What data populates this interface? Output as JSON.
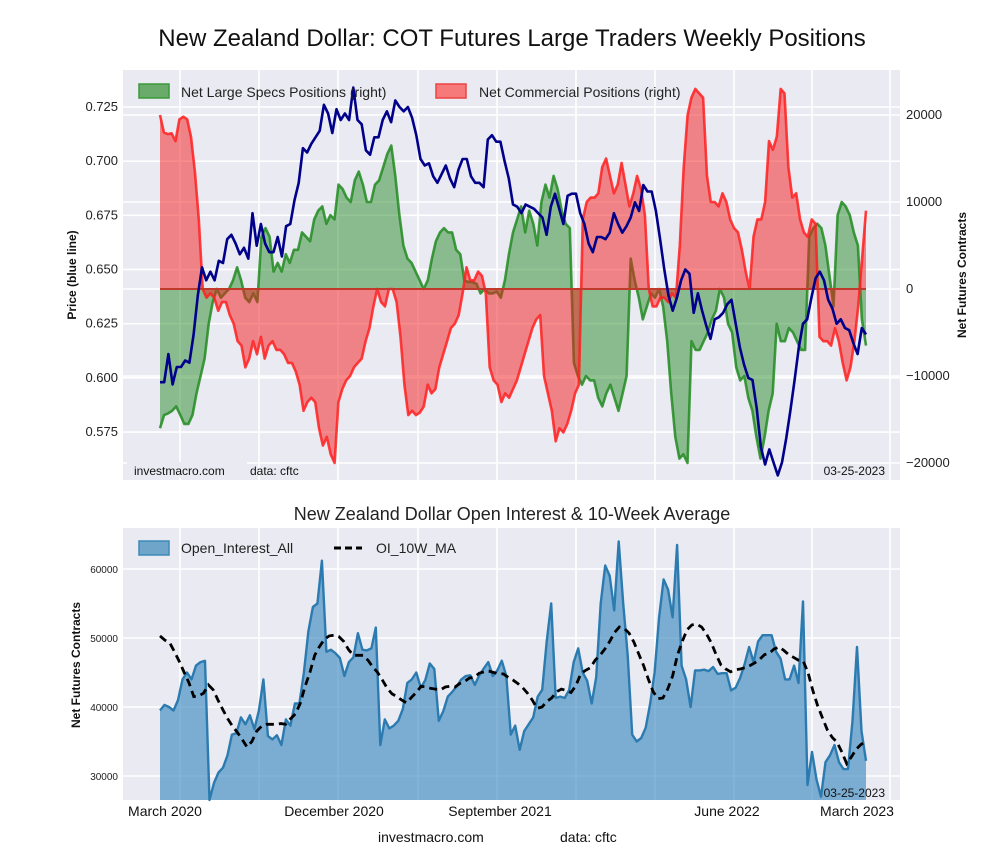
{
  "title": "New Zealand Dollar: COT Futures Large Traders Weekly Positions",
  "chart_data": [
    {
      "type": "line",
      "title": "New Zealand Dollar: COT Futures Large Traders Weekly Positions",
      "ylabel": "Price (blue line)",
      "y2label": "Net Futures Contracts",
      "ylim": [
        0.557,
        0.743
      ],
      "y2lim": [
        -21500,
        25500
      ],
      "yticks": [
        "0.575",
        "0.600",
        "0.625",
        "0.650",
        "0.675",
        "0.700",
        "0.725"
      ],
      "y2ticks": [
        "−20000",
        "−10000",
        "0",
        "10000",
        "20000"
      ],
      "grid": true,
      "legend_position": "top-left",
      "legend": [
        "Net Large Specs Positions (right)",
        "Net Commercial Positions (right)"
      ],
      "footer_left": "investmacro.com    data: cftc",
      "footer_right": "03-25-2023",
      "x_range_weeks": [
        0,
        157
      ],
      "series": [
        {
          "name": "Price",
          "color": "#00008b",
          "values": [
            0.598,
            0.598,
            0.611,
            0.597,
            0.605,
            0.605,
            0.608,
            0.607,
            0.62,
            0.638,
            0.651,
            0.645,
            0.649,
            0.645,
            0.654,
            0.653,
            0.664,
            0.666,
            0.662,
            0.657,
            0.66,
            0.655,
            0.676,
            0.661,
            0.671,
            0.662,
            0.658,
            0.658,
            0.665,
            0.656,
            0.67,
            0.671,
            0.682,
            0.69,
            0.706,
            0.704,
            0.708,
            0.711,
            0.714,
            0.726,
            0.722,
            0.713,
            0.724,
            0.719,
            0.722,
            0.719,
            0.734,
            0.719,
            0.717,
            0.705,
            0.703,
            0.711,
            0.711,
            0.719,
            0.723,
            0.718,
            0.728,
            0.725,
            0.723,
            0.725,
            0.72,
            0.712,
            0.701,
            0.698,
            0.699,
            0.693,
            0.69,
            0.694,
            0.698,
            0.692,
            0.688,
            0.696,
            0.701,
            0.701,
            0.693,
            0.69,
            0.69,
            0.688,
            0.71,
            0.712,
            0.709,
            0.709,
            0.7,
            0.692,
            0.68,
            0.679,
            0.676,
            0.68,
            0.679,
            0.678,
            0.676,
            0.674,
            0.666,
            0.679,
            0.685,
            0.678,
            0.671,
            0.684,
            0.685,
            0.685,
            0.676,
            0.671,
            0.662,
            0.658,
            0.665,
            0.665,
            0.664,
            0.667,
            0.676,
            0.671,
            0.667,
            0.67,
            0.674,
            0.681,
            0.677,
            0.689,
            0.686,
            0.686,
            0.677,
            0.664,
            0.65,
            0.638,
            0.631,
            0.637,
            0.645,
            0.65,
            0.648,
            0.63,
            0.639,
            0.631,
            0.624,
            0.618,
            0.627,
            0.628,
            0.63,
            0.634,
            0.636,
            0.625,
            0.614,
            0.606,
            0.6,
            0.599,
            0.586,
            0.568,
            0.56,
            0.567,
            0.561,
            0.555,
            0.561,
            0.572,
            0.585,
            0.599,
            0.614,
            0.625,
            0.627,
            0.637,
            0.646,
            0.649,
            0.645,
            0.636,
            0.632,
            0.625,
            0.627,
            0.623,
            0.622,
            0.616,
            0.611,
            0.623,
            0.62
          ]
        },
        {
          "name": "Net Large Specs Positions (right)",
          "color": "#228b22",
          "values": [
            -16000,
            -14500,
            -14300,
            -14000,
            -13500,
            -14500,
            -15500,
            -15500,
            -14500,
            -12000,
            -10000,
            -8000,
            -4000,
            -1500,
            0,
            -1000,
            -500,
            0,
            1000,
            2500,
            1000,
            -1000,
            -1500,
            -500,
            -1500,
            6000,
            7000,
            6000,
            2000,
            3000,
            2000,
            4000,
            3000,
            4500,
            4500,
            6500,
            6000,
            5500,
            8000,
            9000,
            9500,
            7500,
            8500,
            8000,
            12000,
            11500,
            10500,
            10000,
            12500,
            13500,
            12000,
            10000,
            10000,
            12000,
            12500,
            14000,
            15500,
            16500,
            13000,
            8500,
            5000,
            3500,
            3000,
            2000,
            1000,
            0,
            1000,
            3500,
            5500,
            6500,
            7000,
            6500,
            6500,
            4500,
            4000,
            1000,
            800,
            800,
            600,
            -500,
            0,
            -500,
            -500,
            -300,
            -1000,
            1000,
            4000,
            6500,
            8000,
            9500,
            6500,
            9000,
            7500,
            5000,
            10000,
            12000,
            10500,
            13000,
            11500,
            9000,
            7500,
            7000,
            -8500,
            -10000,
            -11000,
            -10000,
            -10500,
            -10500,
            -12500,
            -13500,
            -12000,
            -11000,
            -12500,
            -14000,
            -12000,
            -10000,
            3500,
            1000,
            -1000,
            -3500,
            -2000,
            -500,
            -1000,
            0,
            -2000,
            -6000,
            -12000,
            -17000,
            -19500,
            -19000,
            -20000,
            -6000,
            -7000,
            -7000,
            -6000,
            -5000,
            -3500,
            -2500,
            0,
            -1000,
            -4000,
            -5000,
            -9000,
            -10500,
            -10000,
            -12500,
            -14000,
            -17000,
            -19500,
            -17000,
            -14000,
            -12000,
            -4000,
            -6000,
            -6000,
            -4500,
            -5000,
            -6000,
            -7000,
            -7000,
            6000,
            7000,
            7500,
            7000,
            5000,
            1500,
            -2000,
            8500,
            10000,
            9500,
            8500,
            6500,
            5000,
            -3500,
            -6500
          ]
        },
        {
          "name": "Net Commercial Positions (right)",
          "color": "#ff2020",
          "values": [
            20000,
            18000,
            17800,
            17900,
            17000,
            19500,
            19800,
            19500,
            17500,
            13500,
            8000,
            0,
            -1000,
            -500,
            -1000,
            -2500,
            -1500,
            -1500,
            -3000,
            -4000,
            -6000,
            -6500,
            -9000,
            -8000,
            -6000,
            -7500,
            -5500,
            -8000,
            -6500,
            -6000,
            -7000,
            -7000,
            -7500,
            -8500,
            -8500,
            -9500,
            -11000,
            -14000,
            -13000,
            -12500,
            -13000,
            -16000,
            -18000,
            -17000,
            -19000,
            -20000,
            -13000,
            -11500,
            -10500,
            -10000,
            -9000,
            -8500,
            -8000,
            -6000,
            -4500,
            -2000,
            0,
            -1500,
            -2000,
            0,
            0,
            -1500,
            -5500,
            -11000,
            -14500,
            -14000,
            -14500,
            -14200,
            -13500,
            -11000,
            -12000,
            -11500,
            -9000,
            -7500,
            -6000,
            -4500,
            -4000,
            -3000,
            -500,
            2500,
            1000,
            1000,
            2000,
            1500,
            -500,
            -9000,
            -10500,
            -11000,
            -13000,
            -12000,
            -12500,
            -11500,
            -10500,
            -9000,
            -7500,
            -6000,
            -4500,
            -3500,
            -3000,
            -10000,
            -12000,
            -14000,
            -17500,
            -16000,
            -16500,
            -15500,
            -14000,
            -12000,
            -11000,
            8000,
            10000,
            10500,
            10500,
            11000,
            14000,
            15000,
            13000,
            11000,
            12000,
            14500,
            12000,
            9500,
            11000,
            13000,
            11500,
            8500,
            0,
            -2000,
            -2000,
            -1000,
            -1000,
            -1500,
            -500,
            -1000,
            5000,
            14000,
            20000,
            22000,
            23000,
            22500,
            22000,
            13000,
            10000,
            10000,
            9500,
            11000,
            10000,
            8000,
            7000,
            6500,
            4500,
            2000,
            0,
            6000,
            8000,
            8000,
            10000,
            17000,
            16000,
            17500,
            23000,
            22500,
            14000,
            10500,
            11000,
            8000,
            6500,
            6000,
            8000,
            7500,
            -5500,
            -6000,
            -6000,
            -6500,
            -4500,
            -6000,
            -8500,
            -10500,
            -9000,
            -6000,
            -2000,
            3500,
            9000
          ]
        }
      ]
    },
    {
      "type": "area",
      "title": "New Zealand Dollar Open Interest & 10-Week Average",
      "ylabel": "Net Futures Contracts",
      "ylim": [
        26500,
        66000
      ],
      "yticks": [
        "30000",
        "40000",
        "50000",
        "60000"
      ],
      "grid": true,
      "legend_position": "top-left",
      "legend": [
        "Open_Interest_All",
        "OI_10W_MA"
      ],
      "xtick_labels": [
        "March 2020",
        "December 2020",
        "September 2021",
        "June 2022",
        "March 2023"
      ],
      "date_stamp": "03-25-2023",
      "series": [
        {
          "name": "Open_Interest_All",
          "color": "#3182bd",
          "values": [
            39500,
            40300,
            40000,
            39500,
            41000,
            44000,
            45000,
            44000,
            46000,
            46500,
            46700,
            26500,
            29000,
            30500,
            31200,
            33000,
            36000,
            36200,
            38500,
            37500,
            38800,
            36800,
            39500,
            44000,
            35800,
            35300,
            35900,
            34500,
            38200,
            37300,
            40500,
            40500,
            45000,
            51000,
            54500,
            55000,
            61200,
            48000,
            48300,
            47800,
            47100,
            44500,
            46500,
            47200,
            50700,
            48300,
            48200,
            48500,
            51500,
            34500,
            38200,
            36900,
            37300,
            38000,
            39700,
            43500,
            44000,
            45000,
            42800,
            43900,
            46300,
            45500,
            38000,
            39400,
            41500,
            42200,
            43000,
            44000,
            44500,
            44600,
            43200,
            44600,
            45600,
            46500,
            44500,
            45300,
            46700,
            44500,
            36000,
            37300,
            33800,
            36500,
            37500,
            38500,
            41500,
            42500,
            49500,
            55000,
            41300,
            41500,
            41300,
            42500,
            46500,
            48500,
            45000,
            43800,
            40500,
            44300,
            55000,
            60500,
            59000,
            54000,
            64000,
            55000,
            47500,
            36000,
            35000,
            35500,
            37000,
            40500,
            45000,
            53000,
            58500,
            57000,
            53000,
            63500,
            46000,
            44000,
            40000,
            45300,
            45300,
            45400,
            45200,
            45800,
            44800,
            44900,
            44900,
            42400,
            42800,
            44200,
            46200,
            48700,
            46500,
            49500,
            50400,
            50400,
            50400,
            48000,
            47000,
            44000,
            44000,
            46000,
            43500,
            55300,
            28700,
            33500,
            29500,
            27000,
            32000,
            33000,
            34500,
            32000,
            31000,
            31000,
            38000,
            48700,
            36500,
            32200
          ]
        },
        {
          "name": "OI_10W_MA",
          "color": "#000000",
          "values": [
            50300,
            49700,
            49300,
            48000,
            46600,
            45000,
            43500,
            41500,
            41600,
            42000,
            43200,
            42500,
            41000,
            39600,
            38300,
            37200,
            36300,
            35300,
            34200,
            35000,
            36500,
            37200,
            37500,
            37500,
            37500,
            37600,
            37500,
            38300,
            39000,
            40500,
            43000,
            45000,
            47500,
            48800,
            49800,
            50300,
            50400,
            50200,
            49500,
            48300,
            47500,
            47500,
            47500,
            46800,
            45800,
            45000,
            43900,
            42700,
            41900,
            41500,
            41000,
            40600,
            41400,
            42100,
            43000,
            42900,
            42700,
            42600,
            42500,
            42900,
            43000,
            42900,
            43400,
            43700,
            44200,
            44300,
            44900,
            45100,
            45200,
            45000,
            44800,
            44800,
            44300,
            43900,
            43400,
            42800,
            42000,
            41000,
            39800,
            40000,
            40800,
            41300,
            42200,
            42600,
            42400,
            42100,
            43100,
            44800,
            45300,
            45700,
            46800,
            47500,
            48400,
            49500,
            50800,
            51600,
            51400,
            50700,
            49400,
            47700,
            46000,
            44000,
            42200,
            41200,
            41300,
            42600,
            44500,
            47500,
            49500,
            51200,
            51900,
            52000,
            51600,
            50600,
            49300,
            47600,
            46100,
            45500,
            45100,
            45400,
            45500,
            45700,
            46000,
            46400,
            46900,
            47600,
            47800,
            48400,
            48700,
            48200,
            47600,
            47200,
            46800,
            46700,
            45000,
            42400,
            40200,
            38400,
            36700,
            35600,
            34900,
            33500,
            31800,
            32800,
            33900,
            34600,
            35000
          ]
        }
      ]
    }
  ],
  "top_chart": {
    "footer_site": "investmacro.com",
    "footer_source": "data: cftc",
    "footer_date": "03-25-2023"
  },
  "bottom_chart": {
    "title": "New Zealand Dollar Open Interest & 10-Week Average"
  },
  "footer": {
    "site": "investmacro.com",
    "source": "data: cftc"
  }
}
